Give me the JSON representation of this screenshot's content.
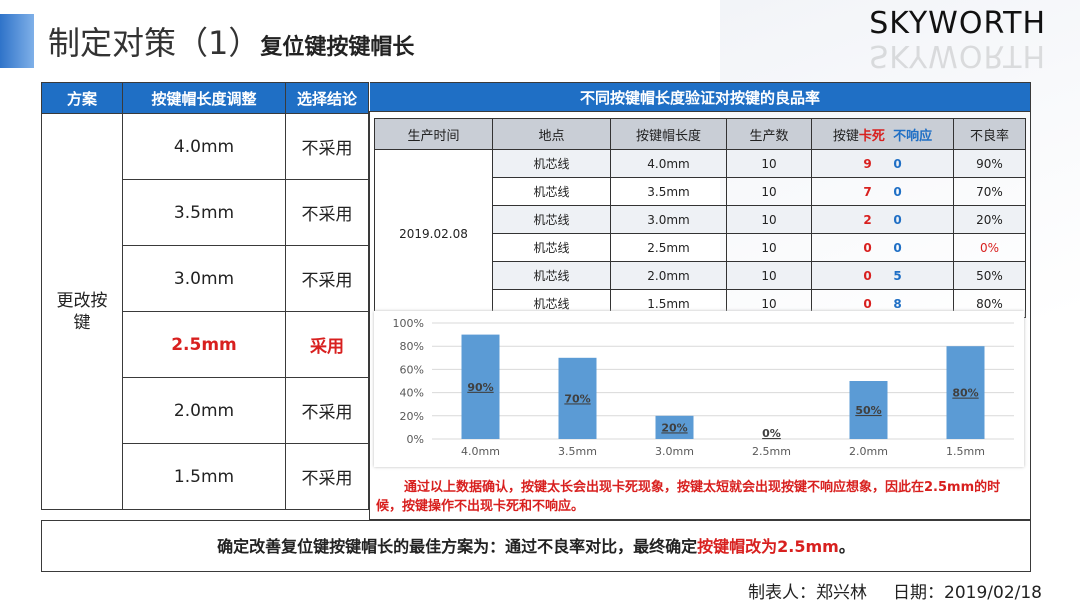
{
  "title": {
    "main": "制定对策（1）",
    "sub": "复位键按键帽长"
  },
  "logo": "SKYWORTH",
  "left_table": {
    "headers": [
      "方案",
      "按键帽长度调整",
      "选择结论"
    ],
    "scheme": "更改按键",
    "rows": [
      {
        "length": "4.0mm",
        "decision": "不采用"
      },
      {
        "length": "3.5mm",
        "decision": "不采用"
      },
      {
        "length": "3.0mm",
        "decision": "不采用"
      },
      {
        "length": "2.5mm",
        "decision": "采用"
      },
      {
        "length": "2.0mm",
        "decision": "不采用"
      },
      {
        "length": "1.5mm",
        "decision": "不采用"
      }
    ]
  },
  "right_header": "不同按键帽长度验证对按键的良品率",
  "data_table": {
    "headers": {
      "time": "生产时间",
      "place": "地点",
      "length": "按键帽长度",
      "qty": "生产数",
      "key_prefix": "按键",
      "stuck": "卡死",
      "noresp": "不响应",
      "rate": "不良率"
    },
    "date": "2019.02.08",
    "rows": [
      {
        "place": "机芯线",
        "length": "4.0mm",
        "qty": "10",
        "stuck": "9",
        "noresp": "0",
        "rate": "90%"
      },
      {
        "place": "机芯线",
        "length": "3.5mm",
        "qty": "10",
        "stuck": "7",
        "noresp": "0",
        "rate": "70%"
      },
      {
        "place": "机芯线",
        "length": "3.0mm",
        "qty": "10",
        "stuck": "2",
        "noresp": "0",
        "rate": "20%"
      },
      {
        "place": "机芯线",
        "length": "2.5mm",
        "qty": "10",
        "stuck": "0",
        "noresp": "0",
        "rate": "0%"
      },
      {
        "place": "机芯线",
        "length": "2.0mm",
        "qty": "10",
        "stuck": "0",
        "noresp": "5",
        "rate": "50%"
      },
      {
        "place": "机芯线",
        "length": "1.5mm",
        "qty": "10",
        "stuck": "0",
        "noresp": "8",
        "rate": "80%"
      }
    ]
  },
  "chart_data": {
    "type": "bar",
    "categories": [
      "4.0mm",
      "3.5mm",
      "3.0mm",
      "2.5mm",
      "2.0mm",
      "1.5mm"
    ],
    "values": [
      90,
      70,
      20,
      0,
      50,
      80
    ],
    "data_labels": [
      "90%",
      "70%",
      "20%",
      "0%",
      "50%",
      "80%"
    ],
    "y_ticks": [
      "0%",
      "20%",
      "40%",
      "60%",
      "80%",
      "100%"
    ],
    "ylim": [
      0,
      100
    ],
    "grid": true,
    "bar_color": "#5b9bd5",
    "title": "",
    "xlabel": "",
    "ylabel": ""
  },
  "conclusion": "通过以上数据确认，按键太长会出现卡死现象，按键太短就会出现按键不响应想象，因此在2.5mm的时候，按键操作不出现卡死和不响应。",
  "bottom": {
    "prefix": "确定改善复位键按键帽长的最佳方案为：通过不良率对比，最终确定",
    "highlight": "按键帽改为2.5mm",
    "suffix": "。"
  },
  "footer": {
    "author": "制表人：郑兴林",
    "date": "日期：2019/02/18"
  },
  "colors": {
    "header_blue": "#1f6fc5",
    "red": "#d8201f"
  }
}
